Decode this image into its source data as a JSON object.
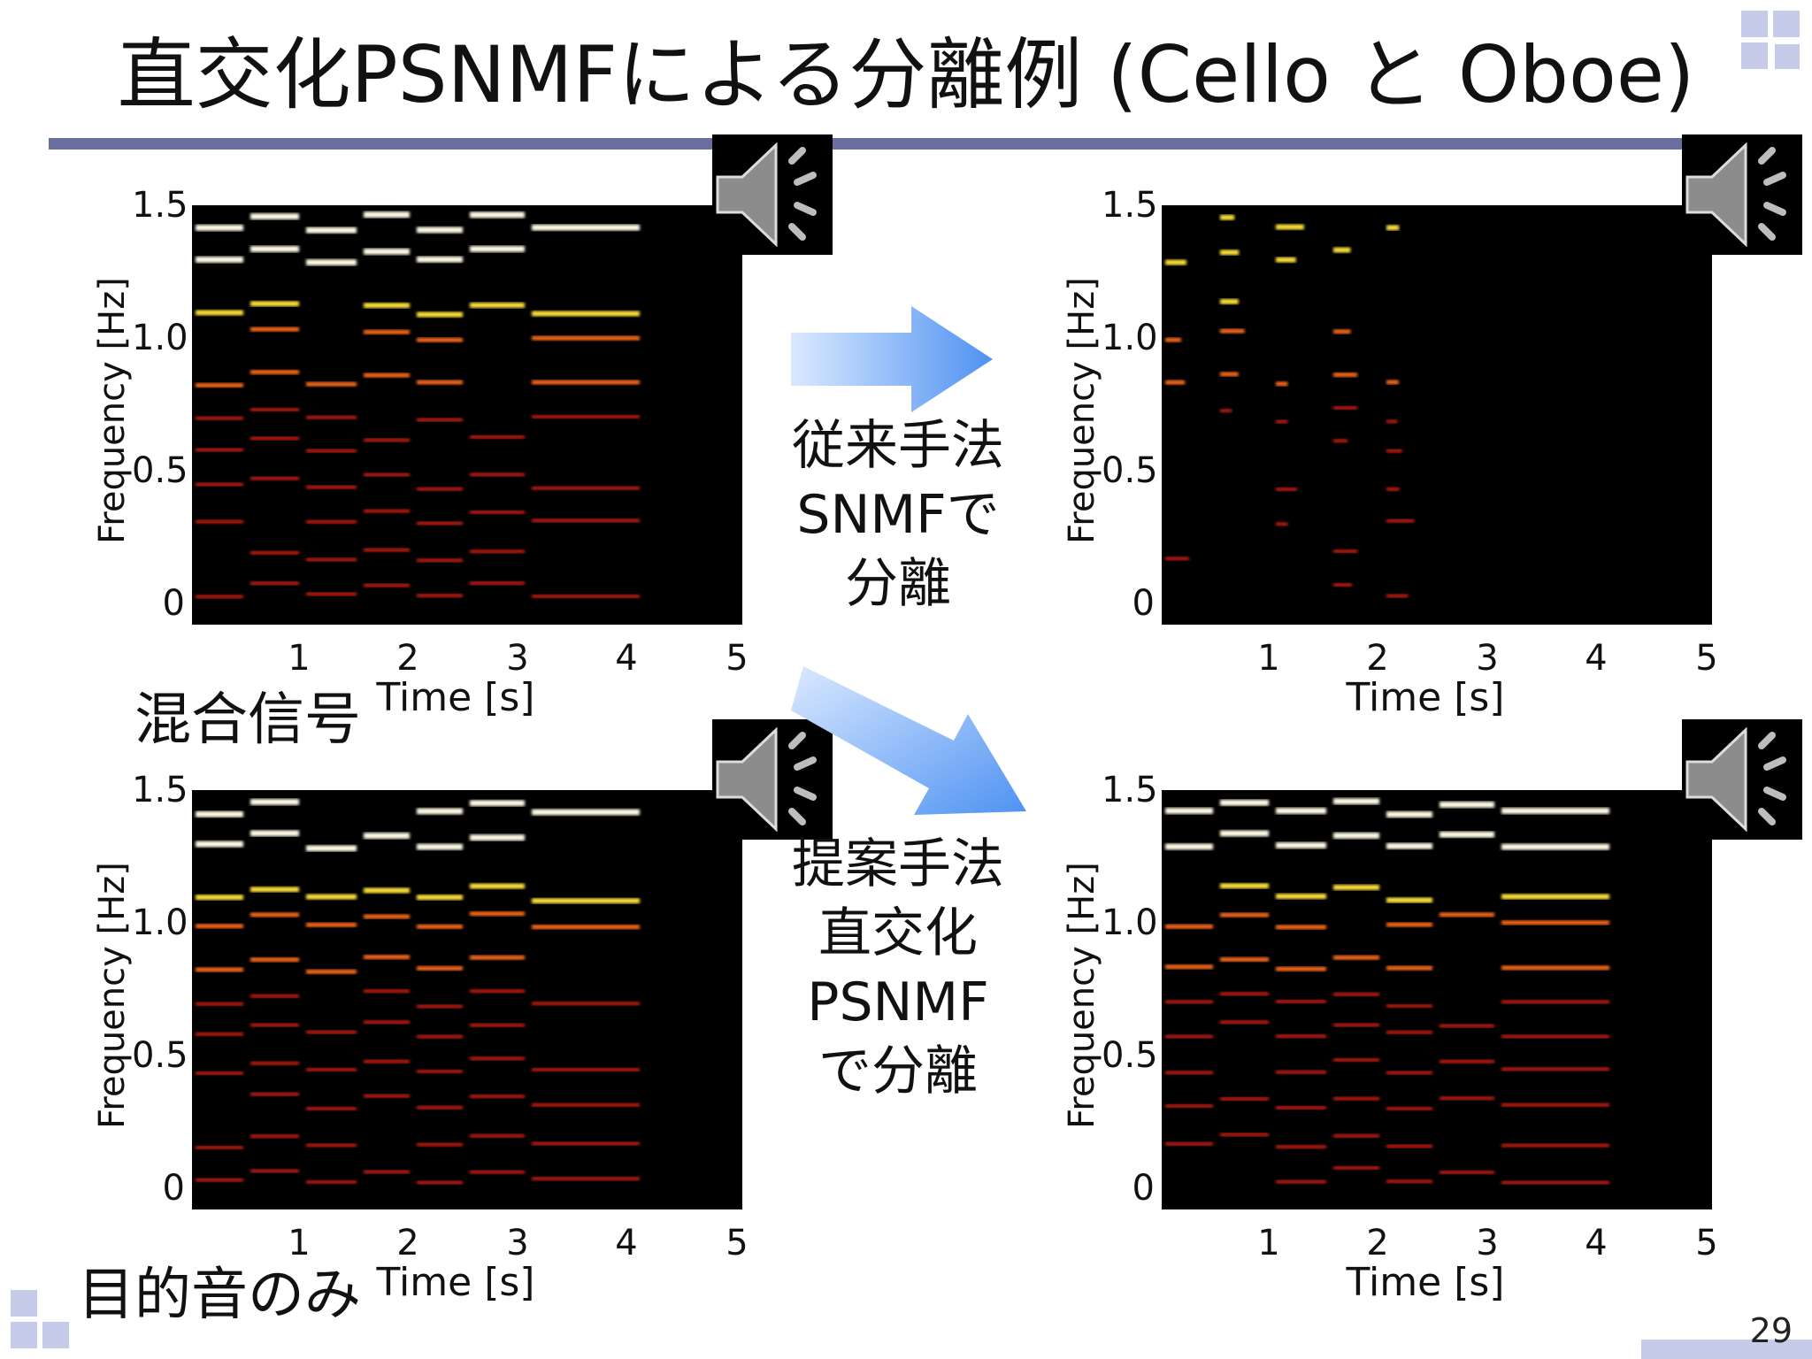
{
  "slide": {
    "title": "直交化PSNMFによる分離例 (Cello と Oboe)",
    "page_number": "29"
  },
  "captions": {
    "mixture": "混合信号",
    "target": "目的音のみ"
  },
  "methods": {
    "conventional": [
      "従来手法",
      "SNMFで",
      "分離"
    ],
    "proposed": [
      "提案手法",
      "直交化",
      "PSNMF",
      "で分離"
    ]
  },
  "panels": [
    {
      "id": "mixture",
      "xlabel": "Time [s]",
      "ylabel": "Frequency [Hz]",
      "yticks": [
        "1.5",
        "1.0",
        "0.5",
        "0"
      ],
      "xticks": [
        "1",
        "2",
        "3",
        "4",
        "5"
      ]
    },
    {
      "id": "conventional",
      "xlabel": "Time [s]",
      "ylabel": "Frequency [Hz]",
      "yticks": [
        "1.5",
        "1.0",
        "0.5",
        "0"
      ],
      "xticks": [
        "1",
        "2",
        "3",
        "4",
        "5"
      ]
    },
    {
      "id": "target",
      "xlabel": "Time [s]",
      "ylabel": "Frequency [Hz]",
      "yticks": [
        "1.5",
        "1.0",
        "0.5",
        "0"
      ],
      "xticks": [
        "1",
        "2",
        "3",
        "4",
        "5"
      ]
    },
    {
      "id": "proposed",
      "xlabel": "Time [s]",
      "ylabel": "Frequency [Hz]",
      "yticks": [
        "1.5",
        "1.0",
        "0.5",
        "0"
      ],
      "xticks": [
        "1",
        "2",
        "3",
        "4",
        "5"
      ]
    }
  ],
  "icons": {
    "speaker": "speaker-icon",
    "arrow": "arrow-icon"
  },
  "colors": {
    "rule": "#6b6f9f",
    "deco": "#c6cbe9",
    "arrow_light": "#dbe9ff",
    "arrow_dark": "#4e92f2",
    "spec_red": "#c61b0a",
    "spec_orange": "#ff6a14",
    "spec_yellow": "#ffe23a",
    "spec_white": "#fffbe6"
  }
}
